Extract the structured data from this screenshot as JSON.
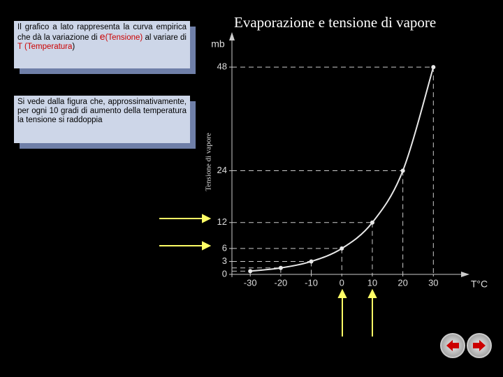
{
  "slide_title": "Evaporazione e tensione di vapore",
  "box1": {
    "parts": [
      {
        "text": "Il grafico a lato rappresenta la curva empirica che dà la variazione di ",
        "color": "#000000"
      },
      {
        "text": "e",
        "color": "#cc0000"
      },
      {
        "text": "(Tensione)",
        "color": "#cc0000"
      },
      {
        "text": " al variare di ",
        "color": "#000000"
      },
      {
        "text": "T (Temperatura",
        "color": "#cc0000"
      },
      {
        "text": ")",
        "color": "#000000"
      }
    ]
  },
  "box2": {
    "text": "Si vede dalla figura che, approssimativamente, per ogni 10 gradi di aumento della temperatura la tensione si raddoppia"
  },
  "chart_data": {
    "type": "line",
    "y_label": "Tensione di vapore",
    "y_unit": "mb",
    "x_label": "T°C",
    "x": [
      -30,
      -20,
      -10,
      0,
      10,
      20,
      30
    ],
    "values": [
      0.75,
      1.5,
      3,
      6,
      12,
      24,
      48
    ],
    "color": "#e8e8e8",
    "xlim": [
      -36,
      40
    ],
    "ylim": [
      0,
      54
    ],
    "xticks": [
      -30,
      -20,
      -10,
      0,
      10,
      20,
      30
    ],
    "yticks": [
      0,
      3,
      6,
      12,
      24,
      48
    ]
  }
}
